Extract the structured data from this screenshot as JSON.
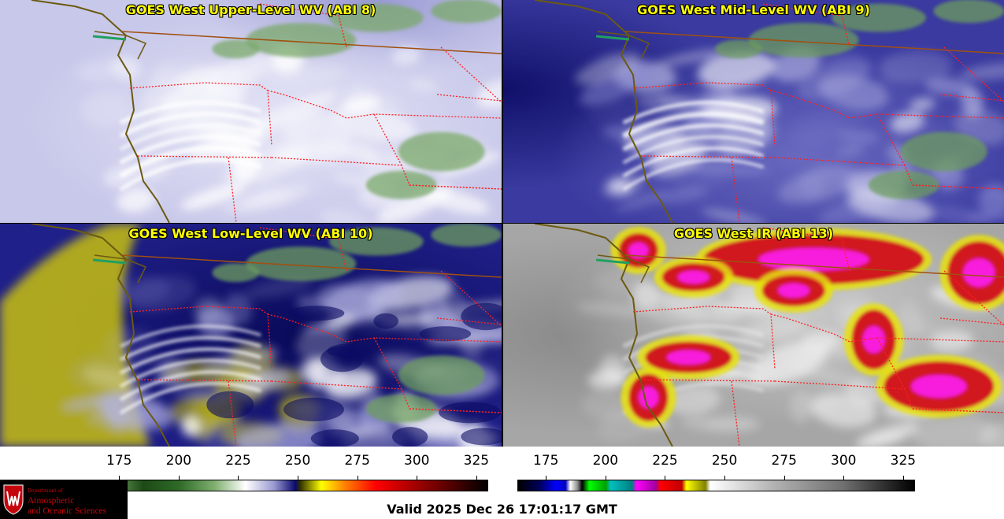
{
  "panels": [
    {
      "title": "GOES West Upper-Level WV (ABI 8)",
      "colormap": "wv",
      "style": "upper"
    },
    {
      "title": "GOES West Mid-Level WV (ABI 9)",
      "colormap": "wv",
      "style": "mid"
    },
    {
      "title": "GOES West Low-Level WV (ABI 10)",
      "colormap": "wv",
      "style": "low"
    },
    {
      "title": "GOES West IR (ABI 13)",
      "colormap": "ir",
      "style": "ir"
    }
  ],
  "colorbars": [
    {
      "name": "water-vapor-colorbar",
      "ticks": [
        "175",
        "200",
        "225",
        "250",
        "275",
        "300",
        "325"
      ],
      "range": [
        163,
        330
      ],
      "stops": [
        [
          163,
          "#e8f4e2"
        ],
        [
          170,
          "#7aa86a"
        ],
        [
          185,
          "#1c4a16"
        ],
        [
          200,
          "#2f6a28"
        ],
        [
          215,
          "#80b070"
        ],
        [
          228,
          "#ffffff"
        ],
        [
          240,
          "#9a9ad0"
        ],
        [
          249,
          "#0a0a6e"
        ],
        [
          251,
          "#303000"
        ],
        [
          260,
          "#ffff00"
        ],
        [
          270,
          "#ff8000"
        ],
        [
          283,
          "#ff0000"
        ],
        [
          300,
          "#a00000"
        ],
        [
          315,
          "#500000"
        ],
        [
          330,
          "#000000"
        ]
      ]
    },
    {
      "name": "infrared-colorbar",
      "ticks": [
        "175",
        "200",
        "225",
        "250",
        "275",
        "300",
        "325"
      ],
      "range": [
        163,
        330
      ],
      "stops": [
        [
          163,
          "#000000"
        ],
        [
          172,
          "#00005a"
        ],
        [
          179,
          "#0000ff"
        ],
        [
          183,
          "#0000c0"
        ],
        [
          185,
          "#ffffff"
        ],
        [
          188,
          "#909090"
        ],
        [
          190,
          "#000000"
        ],
        [
          193,
          "#00ff00"
        ],
        [
          200,
          "#00a000"
        ],
        [
          202,
          "#00c0c0"
        ],
        [
          211,
          "#008080"
        ],
        [
          213,
          "#ff00ff"
        ],
        [
          221,
          "#a000a0"
        ],
        [
          223,
          "#ff0000"
        ],
        [
          232,
          "#c00000"
        ],
        [
          234,
          "#ffff00"
        ],
        [
          242,
          "#808000"
        ],
        [
          244,
          "#ffffff"
        ],
        [
          270,
          "#b4b4b4"
        ],
        [
          300,
          "#707070"
        ],
        [
          330,
          "#000000"
        ]
      ]
    }
  ],
  "logo": {
    "dept": "Department of",
    "line1": "Atmospheric",
    "line2": "and Oceanic Sciences",
    "crest_letter": "W"
  },
  "valid_time": "Valid 2025 Dec 26 17:01:17 GMT",
  "colors": {
    "coastline": "#6b5a10",
    "state_border": "#ff2020",
    "country_border": "#a05010",
    "title_text": "#ffff00"
  }
}
